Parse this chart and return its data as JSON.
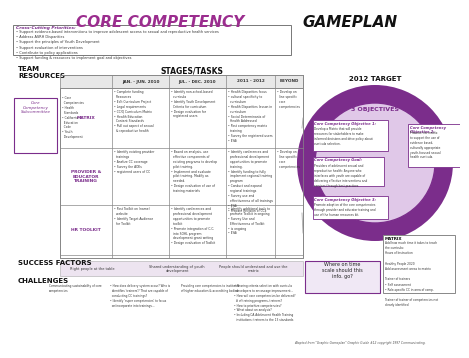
{
  "title_left": "CORE COMPETENCY",
  "title_right": "GAMEPLAN",
  "title_color_left": "#9B2D8E",
  "title_color_right": "#111111",
  "bg_color": "#FFFFFF",
  "cross_cutting_title": "Cross-Cutting Priorities:",
  "cross_cutting_text": "• Support evidence-based interventions to improve adolescent access to sexual and reproductive health services\n• Address ASRH Disparities\n• Support the principles of Youth Development\n• Support evaluation of interventions\n• Contribute to policy applications\n• Support funding & resources to implement goal and objectives",
  "team_resources_label": "TEAM\nRESOURCES",
  "stages_tasks_label": "STAGES/TASKS",
  "target_label": "2012 TARGET",
  "objectives_label": "3 OBJECTIVES",
  "success_factors_label": "SUCCESS FACTORS",
  "challenges_label": "CHALLENGES",
  "col_headers": [
    "JAN. - JUN. 2010",
    "JUL. - DEC. 2010",
    "2011 - 2012",
    "BEYOND"
  ],
  "row_headers": [
    "MATRIX",
    "PROVIDER &\nEDUCATOR\nTRAINING",
    "HR TOOLKIT"
  ],
  "purple_dark": "#7B2D8B",
  "purple_light": "#E0C8E8",
  "purple_mid": "#9B2D8E",
  "gray_light": "#E8E8E8",
  "footnote": "Adapted from \"Graphic Gameplan\" Graphic Guide #12 copyright 1997 Communicating.",
  "matrix_sub": "• Core\n  Competencies\n• Health\n  Standards\n• California\n  Education\n  Code\n• Youth\n  Development",
  "obj1_title": "Core Competency Objective 1:",
  "obj1_body": "Develop a Matrix that will provide\nresources for stakeholders to make\ninformed decisions and drive policy about\ncurricula selection.",
  "obj2_title": "Core Competency\nObjective 2:",
  "obj2_body": "Promote the matrix\nto support the use of\nevidence based,\nculturally appropriate\nyouth-focused sexual\nhealth curricula.",
  "goal_title": "Core Competency Goal:",
  "goal_body": "Providers of adolescent sexual and\nreproductive health: Anyone who\ninterfaces with youth are capable of\ndelivering effective interventions and\nservices through best practices.",
  "obj3_title": "Core Competency Objective 3:",
  "obj3_body": "Promote adoption of the core competencies\nthrough provider and educator training and\nuse of the human resources kit.",
  "matrix_note_title": "MATRIX",
  "matrix_note_body": "Add how much time it takes to teach\nthe curricula:\nHours of Instruction\n\nHealthy People 2020\nAdd assessment areas to matrix\n\nTrainer of trainers\n• Self assessment\n• Role-specific CC in area of comp.\n\nTrainer of trainer of competencies not\nclearly identified",
  "where_text": "Where on time\nscale should this\ninfo. go?",
  "sidebar_text": "Core\nCompetency\nSubcommittee",
  "sf_items": [
    "Right people at the table",
    "Shared understanding of youth\ndevelopment",
    "People should understand and use the\nmatrix"
  ],
  "ch_col1": "Communicating sustainability of core\ncompetencies",
  "ch_col2": "• How does delivery system occur? Who is\n  identifies 'trainers'? That are capable of\n  conducting CC trainings?\n• Identify 'super competencies' to focus\n  on/incorporate into trainings...",
  "ch_col3": "Providing core competencies to institutes\nof higher education & accrediting bodies",
  "ch_col4": "• Sharing criteria selection with curricula\n  developers to encourage improvement...\n• How will core competencies be delivered?\n  # of training programs, trainers?\n• How to prioritize competencies?\n• What about an analysis?\n• Including CA Adolescent Health Training\n  institutions: trainers to the 13 standards"
}
